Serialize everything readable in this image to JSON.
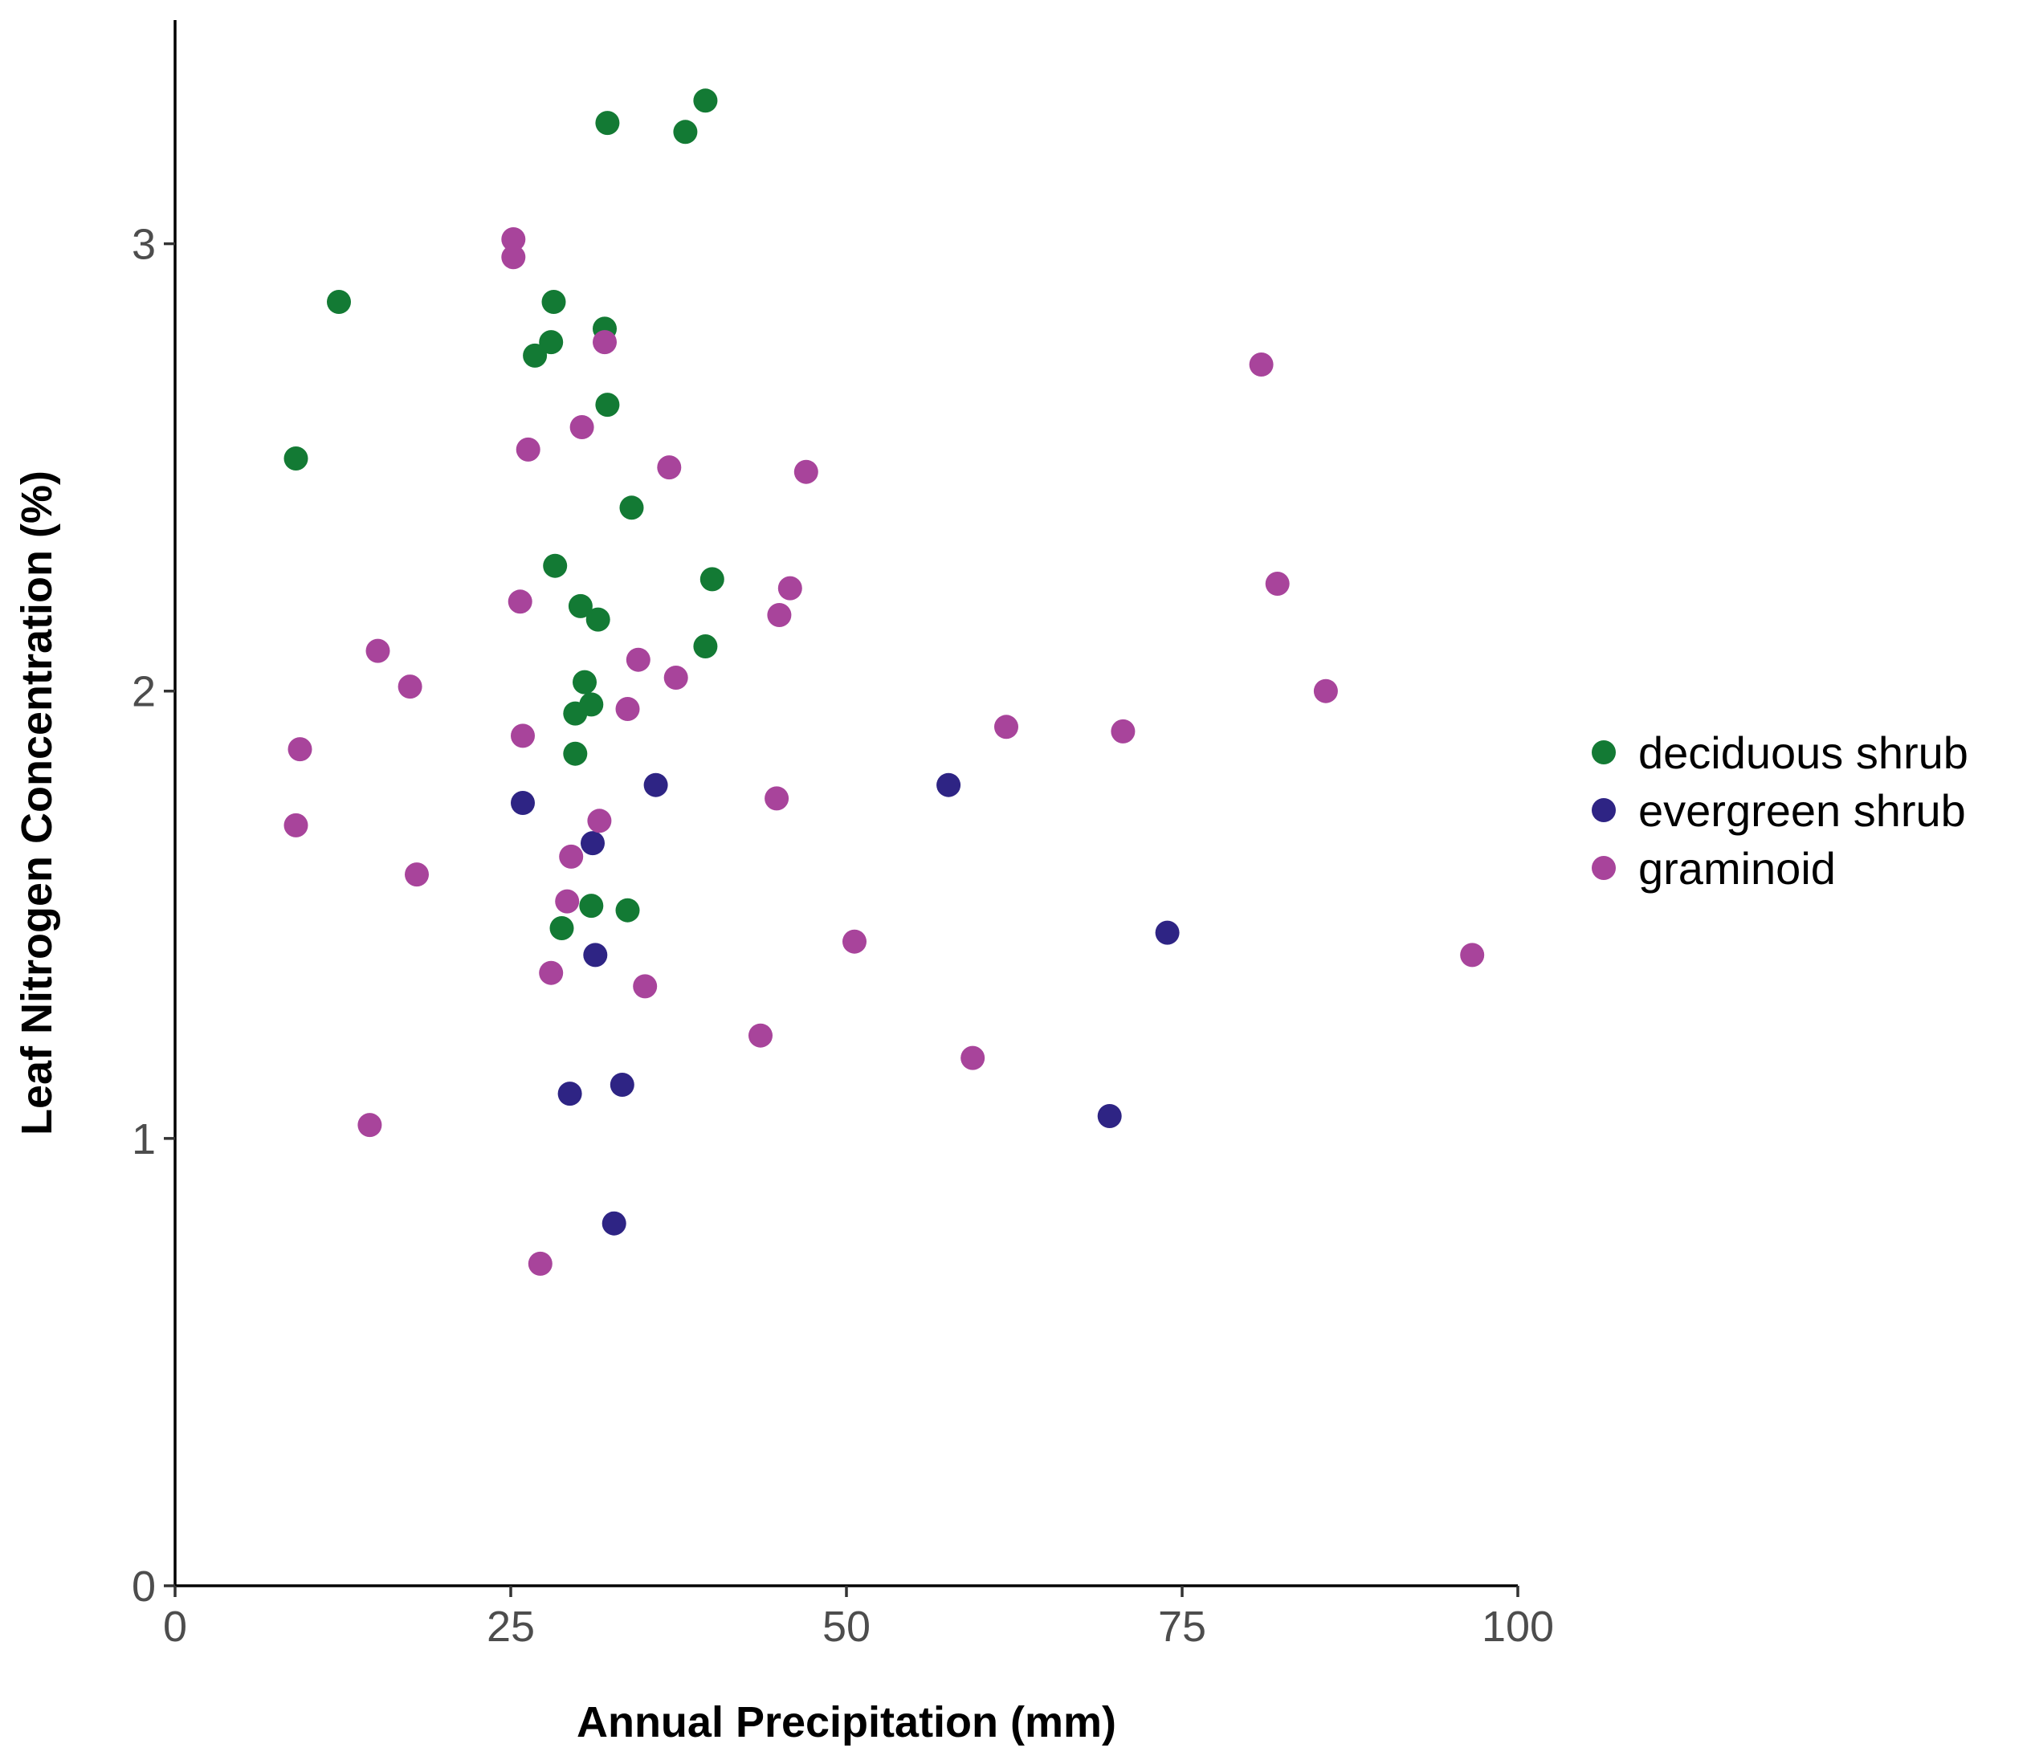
{
  "chart_data": {
    "type": "scatter",
    "title": "",
    "xlabel": "Annual Precipitation (mm)",
    "ylabel": "Leaf Nitrogen Concentration (%)",
    "xlim": [
      0,
      100
    ],
    "ylim": [
      0,
      3.5
    ],
    "x_ticks": [
      0,
      25,
      50,
      75,
      100
    ],
    "x_tick_labels": [
      "0",
      "25",
      "50",
      "75",
      "100"
    ],
    "y_ticks": [
      0,
      1,
      2,
      3
    ],
    "y_tick_labels": [
      "0",
      "1",
      "2",
      "3"
    ],
    "grid": false,
    "legend_position": "right",
    "series": [
      {
        "name": "deciduous shrub",
        "color": "#137a34",
        "points": [
          [
            39.5,
            3.32
          ],
          [
            32.2,
            3.27
          ],
          [
            38.0,
            3.25
          ],
          [
            12.2,
            2.87
          ],
          [
            28.2,
            2.87
          ],
          [
            32.0,
            2.81
          ],
          [
            28.0,
            2.78
          ],
          [
            26.8,
            2.75
          ],
          [
            32.2,
            2.64
          ],
          [
            9.0,
            2.52
          ],
          [
            34.0,
            2.41
          ],
          [
            28.3,
            2.28
          ],
          [
            40.0,
            2.25
          ],
          [
            30.2,
            2.19
          ],
          [
            31.5,
            2.16
          ],
          [
            39.5,
            2.1
          ],
          [
            30.5,
            2.02
          ],
          [
            31.0,
            1.97
          ],
          [
            29.8,
            1.95
          ],
          [
            29.8,
            1.86
          ],
          [
            31.0,
            1.52
          ],
          [
            33.7,
            1.51
          ],
          [
            28.8,
            1.47
          ]
        ]
      },
      {
        "name": "evergreen shrub",
        "color": "#2e2484",
        "points": [
          [
            25.9,
            1.75
          ],
          [
            35.8,
            1.79
          ],
          [
            57.6,
            1.79
          ],
          [
            31.1,
            1.66
          ],
          [
            73.9,
            1.46
          ],
          [
            31.3,
            1.41
          ],
          [
            33.3,
            1.12
          ],
          [
            29.4,
            1.1
          ],
          [
            69.6,
            1.05
          ],
          [
            32.7,
            0.81
          ]
        ]
      },
      {
        "name": "graminoid",
        "color": "#a8449b",
        "points": [
          [
            25.2,
            3.01
          ],
          [
            25.2,
            2.97
          ],
          [
            32.0,
            2.78
          ],
          [
            80.9,
            2.73
          ],
          [
            30.3,
            2.59
          ],
          [
            26.3,
            2.54
          ],
          [
            36.8,
            2.5
          ],
          [
            47.0,
            2.49
          ],
          [
            82.1,
            2.24
          ],
          [
            45.8,
            2.23
          ],
          [
            25.7,
            2.2
          ],
          [
            45.0,
            2.17
          ],
          [
            15.1,
            2.09
          ],
          [
            34.5,
            2.07
          ],
          [
            17.5,
            2.01
          ],
          [
            37.3,
            2.03
          ],
          [
            85.7,
            2.0
          ],
          [
            33.7,
            1.96
          ],
          [
            61.9,
            1.92
          ],
          [
            70.6,
            1.91
          ],
          [
            25.9,
            1.9
          ],
          [
            9.3,
            1.87
          ],
          [
            44.8,
            1.76
          ],
          [
            9.0,
            1.7
          ],
          [
            31.6,
            1.71
          ],
          [
            29.5,
            1.63
          ],
          [
            18.0,
            1.59
          ],
          [
            29.2,
            1.53
          ],
          [
            50.6,
            1.44
          ],
          [
            96.6,
            1.41
          ],
          [
            28.0,
            1.37
          ],
          [
            35.0,
            1.34
          ],
          [
            43.6,
            1.23
          ],
          [
            59.4,
            1.18
          ],
          [
            14.5,
            1.03
          ],
          [
            27.2,
            0.72
          ]
        ]
      }
    ]
  }
}
